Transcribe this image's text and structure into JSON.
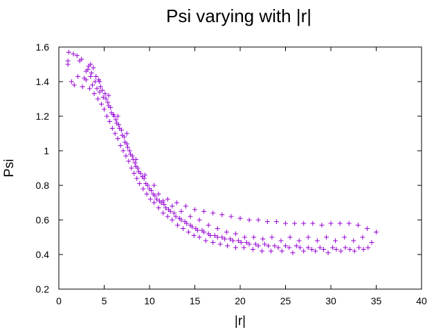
{
  "chart_data": {
    "type": "scatter",
    "title": "Psi varying with |r|",
    "xlabel": "|r|",
    "ylabel": "Psi",
    "xlim": [
      0,
      40
    ],
    "ylim": [
      0.2,
      1.6
    ],
    "x_ticks": [
      "0",
      "5",
      "10",
      "15",
      "20",
      "25",
      "30",
      "35",
      "40"
    ],
    "y_ticks": [
      "0.2",
      "0.4",
      "0.6",
      "0.8",
      "1",
      "1.2",
      "1.4",
      "1.6"
    ],
    "grid": false,
    "legend": "none",
    "marker": "plus",
    "color": "#9400d3",
    "series": [
      {
        "points": [
          [
            1.0,
            1.5
          ],
          [
            1.0,
            1.52
          ],
          [
            1.1,
            1.57
          ],
          [
            1.4,
            1.4
          ],
          [
            1.6,
            1.56
          ],
          [
            1.7,
            1.38
          ],
          [
            2.0,
            1.55
          ],
          [
            2.1,
            1.43
          ],
          [
            2.3,
            1.52
          ],
          [
            2.5,
            1.53
          ],
          [
            2.6,
            1.37
          ],
          [
            2.8,
            1.42
          ],
          [
            3.0,
            1.46
          ],
          [
            3.0,
            1.41
          ],
          [
            3.2,
            1.47
          ],
          [
            3.3,
            1.49
          ],
          [
            3.4,
            1.36
          ],
          [
            3.5,
            1.43
          ],
          [
            3.6,
            1.45
          ],
          [
            3.7,
            1.38
          ],
          [
            3.8,
            1.48
          ],
          [
            3.9,
            1.33
          ],
          [
            4.0,
            1.4
          ],
          [
            4.1,
            1.43
          ],
          [
            4.2,
            1.36
          ],
          [
            4.3,
            1.3
          ],
          [
            4.4,
            1.41
          ],
          [
            4.5,
            1.34
          ],
          [
            4.6,
            1.37
          ],
          [
            4.7,
            1.27
          ],
          [
            4.8,
            1.35
          ],
          [
            4.9,
            1.31
          ],
          [
            5.0,
            1.24
          ],
          [
            5.1,
            1.33
          ],
          [
            5.2,
            1.3
          ],
          [
            5.3,
            1.2
          ],
          [
            5.4,
            1.28
          ],
          [
            5.5,
            1.26
          ],
          [
            5.6,
            1.17
          ],
          [
            5.7,
            1.25
          ],
          [
            5.8,
            1.22
          ],
          [
            5.9,
            1.13
          ],
          [
            6.0,
            1.21
          ],
          [
            6.1,
            1.2
          ],
          [
            6.2,
            1.1
          ],
          [
            6.3,
            1.18
          ],
          [
            6.4,
            1.16
          ],
          [
            6.5,
            1.07
          ],
          [
            6.6,
            1.15
          ],
          [
            6.7,
            1.13
          ],
          [
            6.8,
            1.03
          ],
          [
            6.9,
            1.12
          ],
          [
            7.0,
            1.09
          ],
          [
            7.1,
            1.0
          ],
          [
            7.2,
            1.08
          ],
          [
            7.3,
            1.05
          ],
          [
            7.4,
            0.97
          ],
          [
            7.5,
            1.04
          ],
          [
            7.6,
            1.02
          ],
          [
            7.7,
            0.94
          ],
          [
            7.8,
            1.0
          ],
          [
            7.9,
            0.98
          ],
          [
            8.0,
            0.9
          ],
          [
            8.1,
            0.97
          ],
          [
            8.2,
            0.95
          ],
          [
            8.3,
            0.87
          ],
          [
            8.4,
            0.93
          ],
          [
            8.5,
            0.91
          ],
          [
            8.6,
            0.84
          ],
          [
            8.7,
            0.9
          ],
          [
            8.8,
            0.88
          ],
          [
            8.9,
            0.81
          ],
          [
            9.0,
            0.87
          ],
          [
            9.2,
            0.85
          ],
          [
            9.3,
            0.78
          ],
          [
            9.4,
            0.84
          ],
          [
            9.6,
            0.81
          ],
          [
            9.7,
            0.75
          ],
          [
            9.8,
            0.8
          ],
          [
            10.0,
            0.78
          ],
          [
            10.1,
            0.72
          ],
          [
            10.2,
            0.77
          ],
          [
            10.4,
            0.75
          ],
          [
            10.5,
            0.7
          ],
          [
            10.6,
            0.74
          ],
          [
            10.8,
            0.72
          ],
          [
            11.0,
            0.67
          ],
          [
            11.1,
            0.71
          ],
          [
            11.3,
            0.7
          ],
          [
            11.5,
            0.64
          ],
          [
            11.6,
            0.69
          ],
          [
            11.8,
            0.67
          ],
          [
            12.0,
            0.62
          ],
          [
            12.1,
            0.66
          ],
          [
            12.3,
            0.65
          ],
          [
            12.5,
            0.6
          ],
          [
            12.7,
            0.64
          ],
          [
            12.9,
            0.62
          ],
          [
            13.1,
            0.57
          ],
          [
            13.3,
            0.61
          ],
          [
            13.5,
            0.6
          ],
          [
            13.7,
            0.55
          ],
          [
            13.9,
            0.59
          ],
          [
            14.1,
            0.58
          ],
          [
            14.3,
            0.53
          ],
          [
            14.5,
            0.57
          ],
          [
            14.7,
            0.56
          ],
          [
            14.9,
            0.51
          ],
          [
            15.1,
            0.55
          ],
          [
            15.3,
            0.54
          ],
          [
            15.5,
            0.5
          ],
          [
            15.8,
            0.54
          ],
          [
            16.0,
            0.53
          ],
          [
            16.2,
            0.48
          ],
          [
            16.5,
            0.52
          ],
          [
            16.7,
            0.51
          ],
          [
            17.0,
            0.47
          ],
          [
            17.2,
            0.51
          ],
          [
            17.5,
            0.5
          ],
          [
            17.8,
            0.46
          ],
          [
            18.0,
            0.5
          ],
          [
            18.3,
            0.49
          ],
          [
            18.6,
            0.45
          ],
          [
            18.9,
            0.49
          ],
          [
            19.2,
            0.48
          ],
          [
            19.5,
            0.44
          ],
          [
            19.8,
            0.48
          ],
          [
            20.1,
            0.47
          ],
          [
            20.4,
            0.44
          ],
          [
            20.7,
            0.47
          ],
          [
            21.0,
            0.46
          ],
          [
            21.4,
            0.43
          ],
          [
            21.7,
            0.46
          ],
          [
            22.0,
            0.45
          ],
          [
            22.4,
            0.42
          ],
          [
            22.7,
            0.46
          ],
          [
            23.1,
            0.45
          ],
          [
            23.4,
            0.42
          ],
          [
            23.8,
            0.45
          ],
          [
            24.2,
            0.44
          ],
          [
            24.6,
            0.42
          ],
          [
            25.0,
            0.45
          ],
          [
            25.4,
            0.44
          ],
          [
            25.8,
            0.41
          ],
          [
            26.2,
            0.45
          ],
          [
            26.6,
            0.44
          ],
          [
            27.0,
            0.42
          ],
          [
            27.5,
            0.44
          ],
          [
            27.9,
            0.43
          ],
          [
            28.3,
            0.42
          ],
          [
            28.8,
            0.44
          ],
          [
            29.2,
            0.43
          ],
          [
            29.7,
            0.41
          ],
          [
            30.2,
            0.44
          ],
          [
            30.6,
            0.43
          ],
          [
            31.1,
            0.42
          ],
          [
            31.6,
            0.44
          ],
          [
            32.1,
            0.43
          ],
          [
            32.6,
            0.42
          ],
          [
            33.1,
            0.44
          ],
          [
            33.6,
            0.43
          ],
          [
            34.1,
            0.44
          ],
          [
            11.0,
            0.75
          ],
          [
            12.0,
            0.72
          ],
          [
            13.0,
            0.7
          ],
          [
            14.0,
            0.68
          ],
          [
            15.0,
            0.66
          ],
          [
            16.0,
            0.65
          ],
          [
            17.0,
            0.64
          ],
          [
            18.0,
            0.63
          ],
          [
            19.0,
            0.62
          ],
          [
            20.0,
            0.61
          ],
          [
            21.0,
            0.6
          ],
          [
            22.0,
            0.6
          ],
          [
            23.0,
            0.59
          ],
          [
            24.0,
            0.59
          ],
          [
            25.0,
            0.58
          ],
          [
            26.0,
            0.58
          ],
          [
            27.0,
            0.58
          ],
          [
            28.0,
            0.58
          ],
          [
            29.0,
            0.57
          ],
          [
            30.0,
            0.58
          ],
          [
            31.0,
            0.58
          ],
          [
            32.0,
            0.58
          ],
          [
            33.0,
            0.57
          ],
          [
            34.0,
            0.55
          ],
          [
            35.0,
            0.53
          ],
          [
            34.5,
            0.47
          ],
          [
            33.5,
            0.5
          ],
          [
            32.5,
            0.48
          ],
          [
            31.5,
            0.5
          ],
          [
            30.5,
            0.48
          ],
          [
            29.5,
            0.5
          ],
          [
            28.5,
            0.48
          ],
          [
            27.5,
            0.5
          ],
          [
            26.5,
            0.48
          ],
          [
            25.5,
            0.5
          ],
          [
            24.5,
            0.48
          ],
          [
            23.5,
            0.5
          ],
          [
            22.5,
            0.49
          ],
          [
            21.5,
            0.5
          ],
          [
            20.5,
            0.5
          ],
          [
            19.5,
            0.52
          ],
          [
            18.5,
            0.53
          ],
          [
            17.5,
            0.55
          ],
          [
            16.5,
            0.57
          ],
          [
            15.5,
            0.6
          ],
          [
            14.5,
            0.62
          ],
          [
            13.5,
            0.65
          ],
          [
            12.5,
            0.68
          ],
          [
            11.5,
            0.71
          ],
          [
            10.5,
            0.8
          ],
          [
            9.5,
            0.86
          ],
          [
            8.5,
            0.95
          ],
          [
            7.5,
            1.1
          ],
          [
            6.5,
            1.2
          ],
          [
            5.5,
            1.32
          ],
          [
            4.5,
            1.4
          ],
          [
            3.5,
            1.5
          ]
        ]
      }
    ]
  }
}
